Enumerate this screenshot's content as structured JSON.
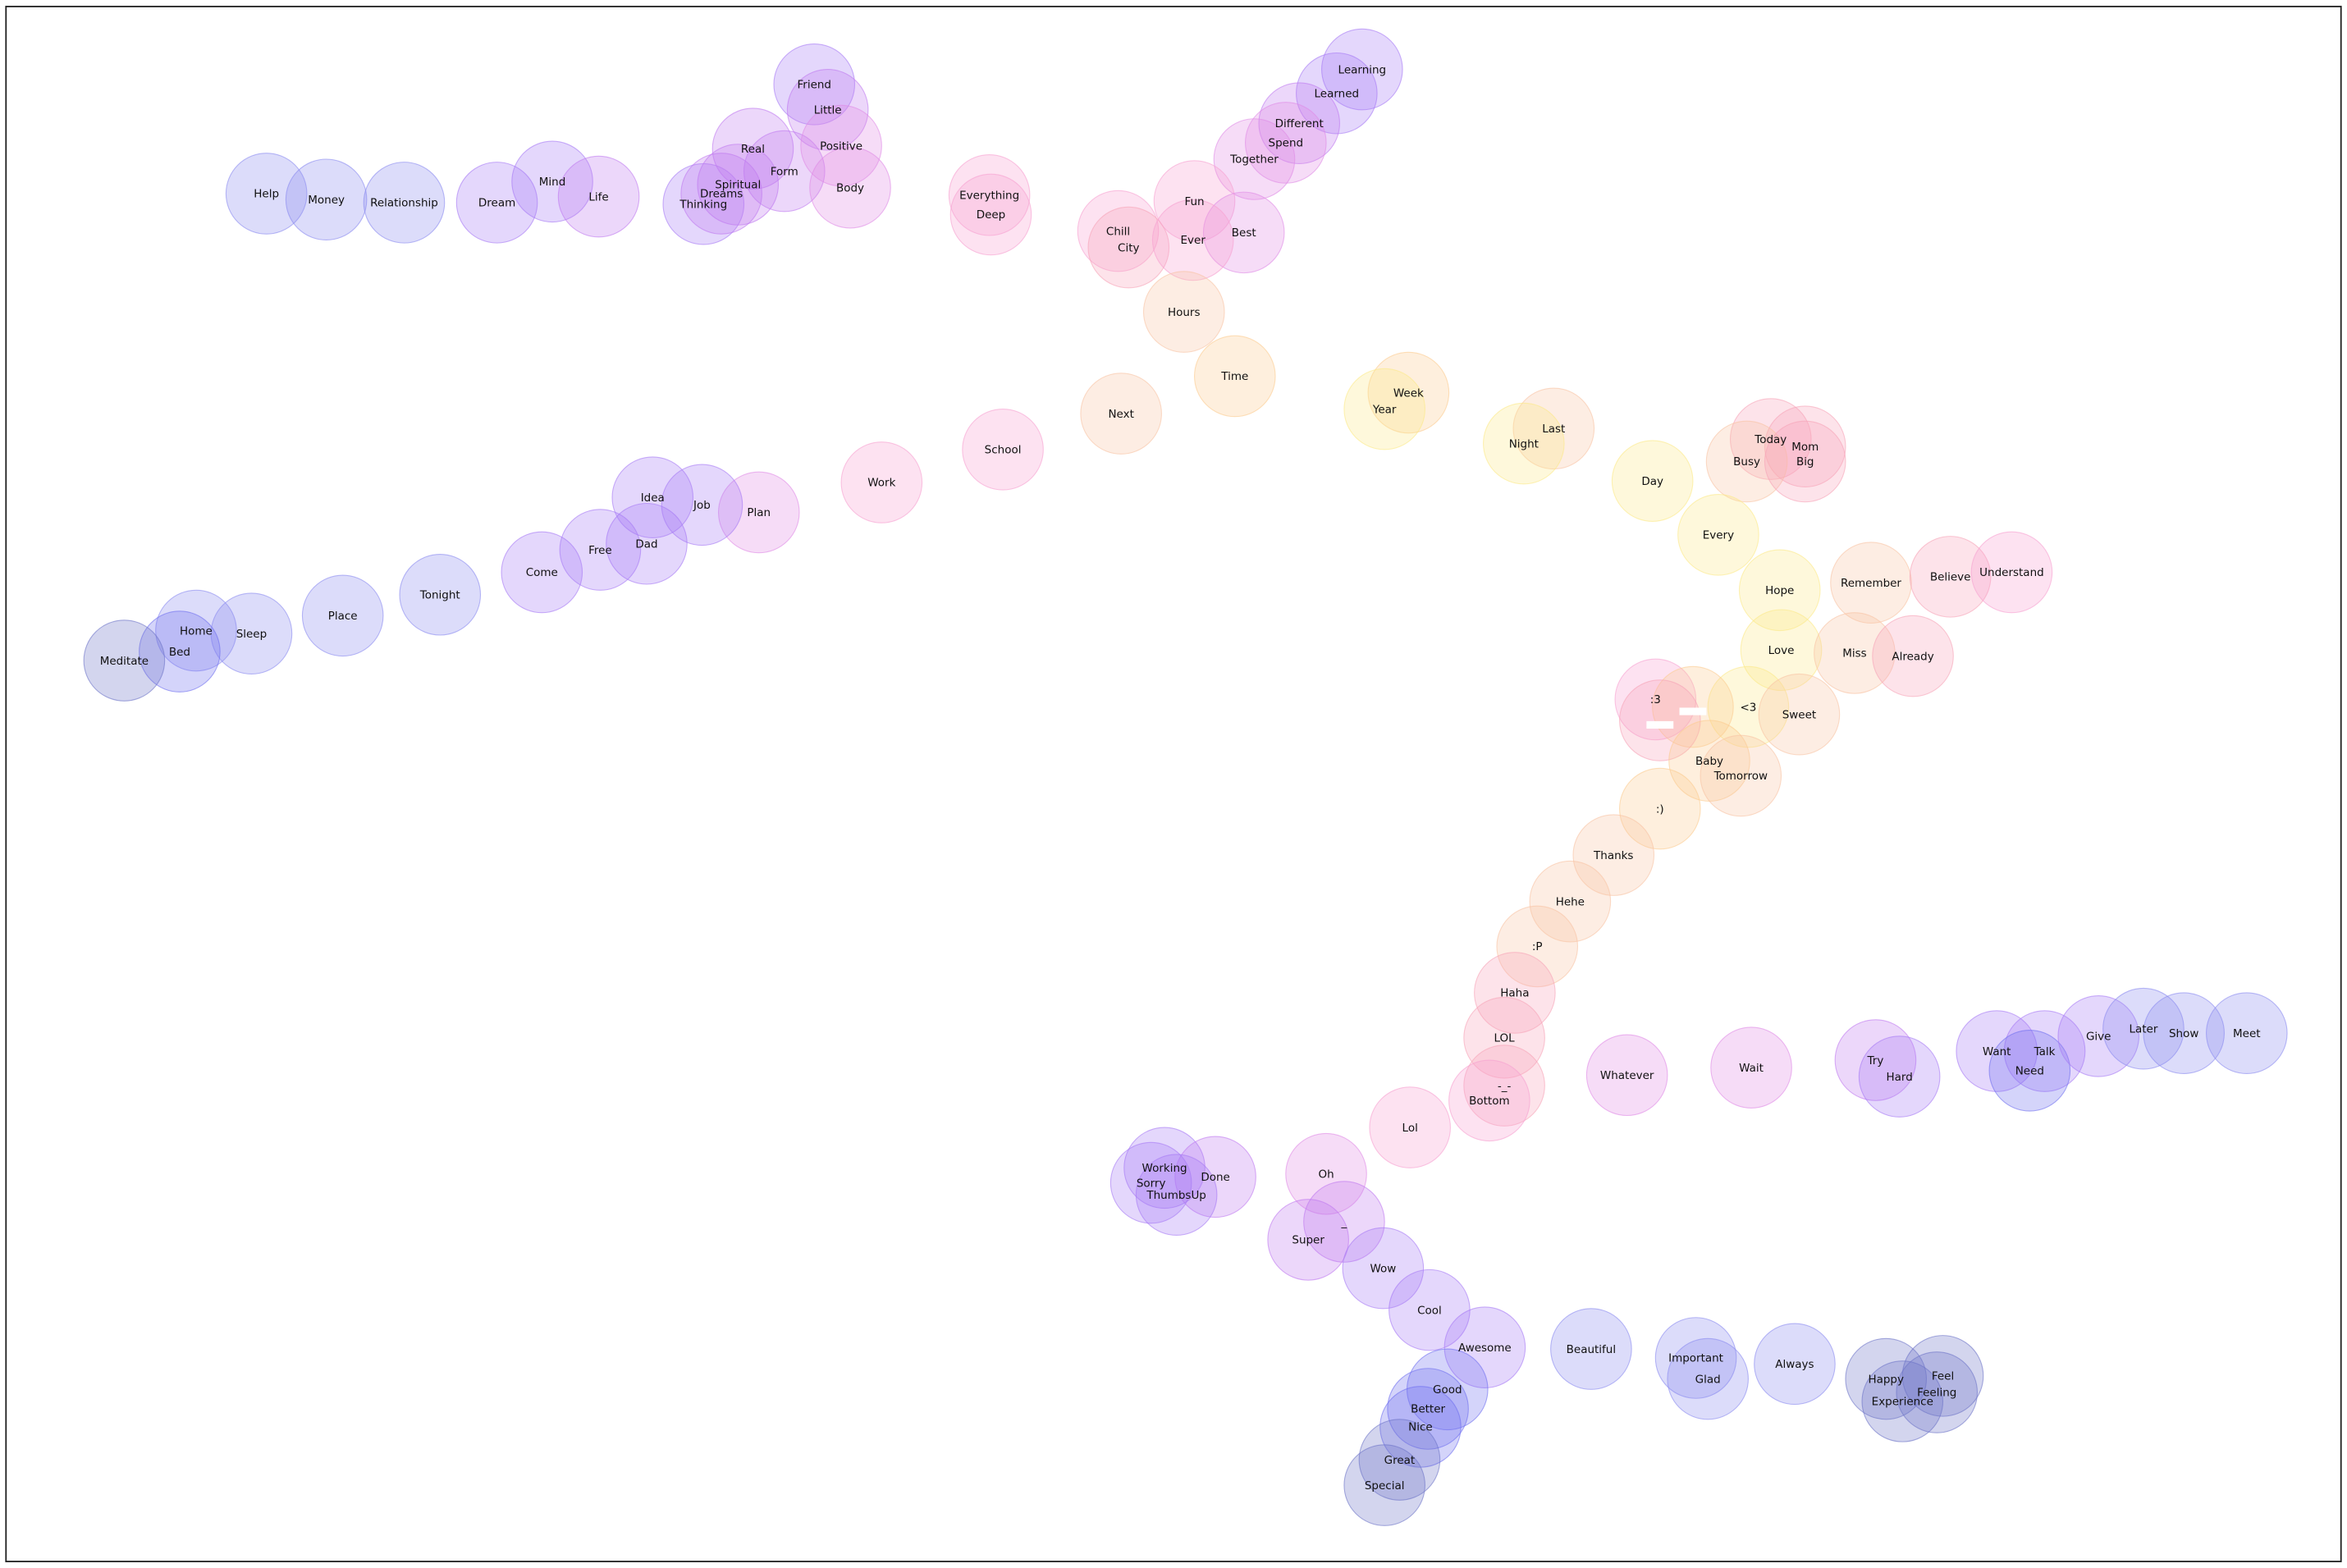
{
  "chart_data": {
    "type": "scatter",
    "title": "",
    "xlabel": "",
    "ylabel": "",
    "xlim": [
      0,
      1568
    ],
    "ylim": [
      0,
      1047
    ],
    "grid": false,
    "legend": "none",
    "axes_visible": false,
    "marker": "circle",
    "marker_opacity": 0.3,
    "palette": {
      "periwinkle": "#8A8AF0",
      "violet": "#A77AF5",
      "purple": "#C07AF0",
      "orchid": "#E08AE6",
      "pink": "#F7A0D0",
      "rose": "#F7A3B8",
      "peach": "#F9C3A3",
      "apricot": "#FBCB8F",
      "lemon": "#FBE987",
      "slate": "#6E74C8",
      "blue": "#6F6FF0",
      "white": "#FFFFFF"
    },
    "points": [
      {
        "label": "Help",
        "x": 178,
        "y": 918,
        "c": "periwinkle"
      },
      {
        "label": "Money",
        "x": 218,
        "y": 914,
        "c": "periwinkle"
      },
      {
        "label": "Relationship",
        "x": 270,
        "y": 912,
        "c": "periwinkle"
      },
      {
        "label": "Dream",
        "x": 332,
        "y": 912,
        "c": "violet"
      },
      {
        "label": "Mind",
        "x": 369,
        "y": 926,
        "c": "violet"
      },
      {
        "label": "Life",
        "x": 400,
        "y": 916,
        "c": "purple"
      },
      {
        "label": "Thinking",
        "x": 470,
        "y": 911,
        "c": "violet"
      },
      {
        "label": "Dreams",
        "x": 482,
        "y": 918,
        "c": "purple"
      },
      {
        "label": "Spiritual",
        "x": 493,
        "y": 924,
        "c": "purple"
      },
      {
        "label": "Real",
        "x": 503,
        "y": 948,
        "c": "purple"
      },
      {
        "label": "Form",
        "x": 524,
        "y": 933,
        "c": "purple"
      },
      {
        "label": "Friend",
        "x": 544,
        "y": 991,
        "c": "violet"
      },
      {
        "label": "Little",
        "x": 553,
        "y": 974,
        "c": "purple"
      },
      {
        "label": "Positive",
        "x": 562,
        "y": 950,
        "c": "orchid"
      },
      {
        "label": "Body",
        "x": 568,
        "y": 922,
        "c": "orchid"
      },
      {
        "label": "Everything",
        "x": 661,
        "y": 917,
        "c": "pink"
      },
      {
        "label": "Deep",
        "x": 662,
        "y": 904,
        "c": "pink"
      },
      {
        "label": "Learning",
        "x": 910,
        "y": 1001,
        "c": "violet"
      },
      {
        "label": "Learned",
        "x": 893,
        "y": 985,
        "c": "violet"
      },
      {
        "label": "Different",
        "x": 868,
        "y": 965,
        "c": "purple"
      },
      {
        "label": "Spend",
        "x": 859,
        "y": 952,
        "c": "orchid"
      },
      {
        "label": "Together",
        "x": 838,
        "y": 941,
        "c": "orchid"
      },
      {
        "label": "Fun",
        "x": 798,
        "y": 913,
        "c": "pink"
      },
      {
        "label": "Best",
        "x": 831,
        "y": 892,
        "c": "orchid"
      },
      {
        "label": "Chill",
        "x": 747,
        "y": 893,
        "c": "pink"
      },
      {
        "label": "City",
        "x": 754,
        "y": 882,
        "c": "rose"
      },
      {
        "label": "Ever",
        "x": 797,
        "y": 887,
        "c": "pink"
      },
      {
        "label": "Hours",
        "x": 791,
        "y": 839,
        "c": "peach"
      },
      {
        "label": "Time",
        "x": 825,
        "y": 796,
        "c": "apricot"
      },
      {
        "label": "Next",
        "x": 749,
        "y": 771,
        "c": "peach"
      },
      {
        "label": "School",
        "x": 670,
        "y": 747,
        "c": "pink"
      },
      {
        "label": "Work",
        "x": 589,
        "y": 725,
        "c": "pink"
      },
      {
        "label": "Plan",
        "x": 507,
        "y": 705,
        "c": "orchid"
      },
      {
        "label": "Job",
        "x": 469,
        "y": 710,
        "c": "violet"
      },
      {
        "label": "Idea",
        "x": 436,
        "y": 715,
        "c": "violet"
      },
      {
        "label": "Dad",
        "x": 432,
        "y": 684,
        "c": "violet"
      },
      {
        "label": "Free",
        "x": 401,
        "y": 680,
        "c": "violet"
      },
      {
        "label": "Come",
        "x": 362,
        "y": 665,
        "c": "violet"
      },
      {
        "label": "Tonight",
        "x": 294,
        "y": 650,
        "c": "periwinkle"
      },
      {
        "label": "Place",
        "x": 229,
        "y": 636,
        "c": "periwinkle"
      },
      {
        "label": "Sleep",
        "x": 168,
        "y": 624,
        "c": "periwinkle"
      },
      {
        "label": "Home",
        "x": 131,
        "y": 626,
        "c": "periwinkle"
      },
      {
        "label": "Bed",
        "x": 120,
        "y": 612,
        "c": "blue"
      },
      {
        "label": "Meditate",
        "x": 83,
        "y": 606,
        "c": "slate"
      },
      {
        "label": "Week",
        "x": 941,
        "y": 785,
        "c": "apricot"
      },
      {
        "label": "Year",
        "x": 925,
        "y": 774,
        "c": "lemon"
      },
      {
        "label": "Last",
        "x": 1038,
        "y": 761,
        "c": "peach"
      },
      {
        "label": "Night",
        "x": 1018,
        "y": 751,
        "c": "lemon"
      },
      {
        "label": "Today",
        "x": 1183,
        "y": 754,
        "c": "rose"
      },
      {
        "label": "Mom",
        "x": 1206,
        "y": 749,
        "c": "rose"
      },
      {
        "label": "Busy",
        "x": 1167,
        "y": 739,
        "c": "peach"
      },
      {
        "label": "Big",
        "x": 1206,
        "y": 739,
        "c": "rose"
      },
      {
        "label": "Day",
        "x": 1104,
        "y": 726,
        "c": "lemon"
      },
      {
        "label": "Every",
        "x": 1148,
        "y": 690,
        "c": "lemon"
      },
      {
        "label": "Hope",
        "x": 1189,
        "y": 653,
        "c": "lemon"
      },
      {
        "label": "Remember",
        "x": 1250,
        "y": 658,
        "c": "peach"
      },
      {
        "label": "Believe",
        "x": 1303,
        "y": 662,
        "c": "rose"
      },
      {
        "label": "Understand",
        "x": 1344,
        "y": 665,
        "c": "pink"
      },
      {
        "label": "Love",
        "x": 1190,
        "y": 613,
        "c": "lemon"
      },
      {
        "label": "Miss",
        "x": 1239,
        "y": 611,
        "c": "peach"
      },
      {
        "label": "Already",
        "x": 1278,
        "y": 609,
        "c": "rose"
      },
      {
        "label": ":3",
        "x": 1106,
        "y": 580,
        "c": "pink"
      },
      {
        "label": "<3",
        "x": 1168,
        "y": 575,
        "c": "lemon"
      },
      {
        "label": "Sweet",
        "x": 1202,
        "y": 570,
        "c": "peach"
      },
      {
        "label": "",
        "x": 1131,
        "y": 575,
        "c": "apricot"
      },
      {
        "label": "",
        "x": 1109,
        "y": 566,
        "c": "rose"
      },
      {
        "label": "Baby",
        "x": 1142,
        "y": 539,
        "c": "apricot"
      },
      {
        "label": "Tomorrow",
        "x": 1163,
        "y": 529,
        "c": "peach"
      },
      {
        "label": ":)",
        "x": 1109,
        "y": 507,
        "c": "apricot"
      },
      {
        "label": "Thanks",
        "x": 1078,
        "y": 476,
        "c": "peach"
      },
      {
        "label": "Hehe",
        "x": 1049,
        "y": 445,
        "c": "peach"
      },
      {
        "label": ":P",
        "x": 1027,
        "y": 415,
        "c": "peach"
      },
      {
        "label": "Haha",
        "x": 1012,
        "y": 384,
        "c": "rose"
      },
      {
        "label": "LOL",
        "x": 1005,
        "y": 354,
        "c": "rose"
      },
      {
        "label": "-_-",
        "x": 1005,
        "y": 322,
        "c": "rose"
      },
      {
        "label": "Bottom",
        "x": 995,
        "y": 312,
        "c": "pink"
      },
      {
        "label": "Whatever",
        "x": 1087,
        "y": 329,
        "c": "orchid"
      },
      {
        "label": "Wait",
        "x": 1170,
        "y": 334,
        "c": "orchid"
      },
      {
        "label": "Try",
        "x": 1253,
        "y": 339,
        "c": "purple"
      },
      {
        "label": "Hard",
        "x": 1269,
        "y": 328,
        "c": "violet"
      },
      {
        "label": "Want",
        "x": 1334,
        "y": 345,
        "c": "violet"
      },
      {
        "label": "Talk",
        "x": 1366,
        "y": 345,
        "c": "violet"
      },
      {
        "label": "Need",
        "x": 1356,
        "y": 332,
        "c": "blue"
      },
      {
        "label": "Give",
        "x": 1402,
        "y": 355,
        "c": "violet"
      },
      {
        "label": "Later",
        "x": 1432,
        "y": 360,
        "c": "periwinkle"
      },
      {
        "label": "Show",
        "x": 1459,
        "y": 357,
        "c": "periwinkle"
      },
      {
        "label": "Meet",
        "x": 1501,
        "y": 357,
        "c": "periwinkle"
      },
      {
        "label": "Lol",
        "x": 942,
        "y": 294,
        "c": "pink"
      },
      {
        "label": "Oh",
        "x": 886,
        "y": 263,
        "c": "orchid"
      },
      {
        "label": "_",
        "x": 898,
        "y": 231,
        "c": "purple"
      },
      {
        "label": "Super",
        "x": 874,
        "y": 219,
        "c": "purple"
      },
      {
        "label": "Wow",
        "x": 924,
        "y": 200,
        "c": "violet"
      },
      {
        "label": "Cool",
        "x": 955,
        "y": 172,
        "c": "violet"
      },
      {
        "label": "Awesome",
        "x": 992,
        "y": 147,
        "c": "violet"
      },
      {
        "label": "Beautiful",
        "x": 1063,
        "y": 146,
        "c": "periwinkle"
      },
      {
        "label": "Important",
        "x": 1133,
        "y": 140,
        "c": "periwinkle"
      },
      {
        "label": "Glad",
        "x": 1141,
        "y": 126,
        "c": "periwinkle"
      },
      {
        "label": "Always",
        "x": 1199,
        "y": 136,
        "c": "periwinkle"
      },
      {
        "label": "Happy",
        "x": 1260,
        "y": 126,
        "c": "slate"
      },
      {
        "label": "Feel",
        "x": 1298,
        "y": 128,
        "c": "slate"
      },
      {
        "label": "Feeling",
        "x": 1294,
        "y": 117,
        "c": "slate"
      },
      {
        "label": "Experience",
        "x": 1271,
        "y": 111,
        "c": "slate"
      },
      {
        "label": "Good",
        "x": 967,
        "y": 119,
        "c": "blue"
      },
      {
        "label": "Better",
        "x": 954,
        "y": 106,
        "c": "blue"
      },
      {
        "label": "Nice",
        "x": 949,
        "y": 94,
        "c": "blue"
      },
      {
        "label": "Great",
        "x": 935,
        "y": 72,
        "c": "slate"
      },
      {
        "label": "Special",
        "x": 925,
        "y": 55,
        "c": "slate"
      },
      {
        "label": "Working",
        "x": 778,
        "y": 267,
        "c": "violet"
      },
      {
        "label": "Done",
        "x": 812,
        "y": 261,
        "c": "purple"
      },
      {
        "label": "Sorry",
        "x": 769,
        "y": 257,
        "c": "violet"
      },
      {
        "label": "ThumbsUp",
        "x": 786,
        "y": 249,
        "c": "violet"
      }
    ],
    "markers": [
      {
        "x": 1131,
        "y": 572,
        "c": "white"
      },
      {
        "x": 1109,
        "y": 563,
        "c": "white"
      }
    ]
  }
}
